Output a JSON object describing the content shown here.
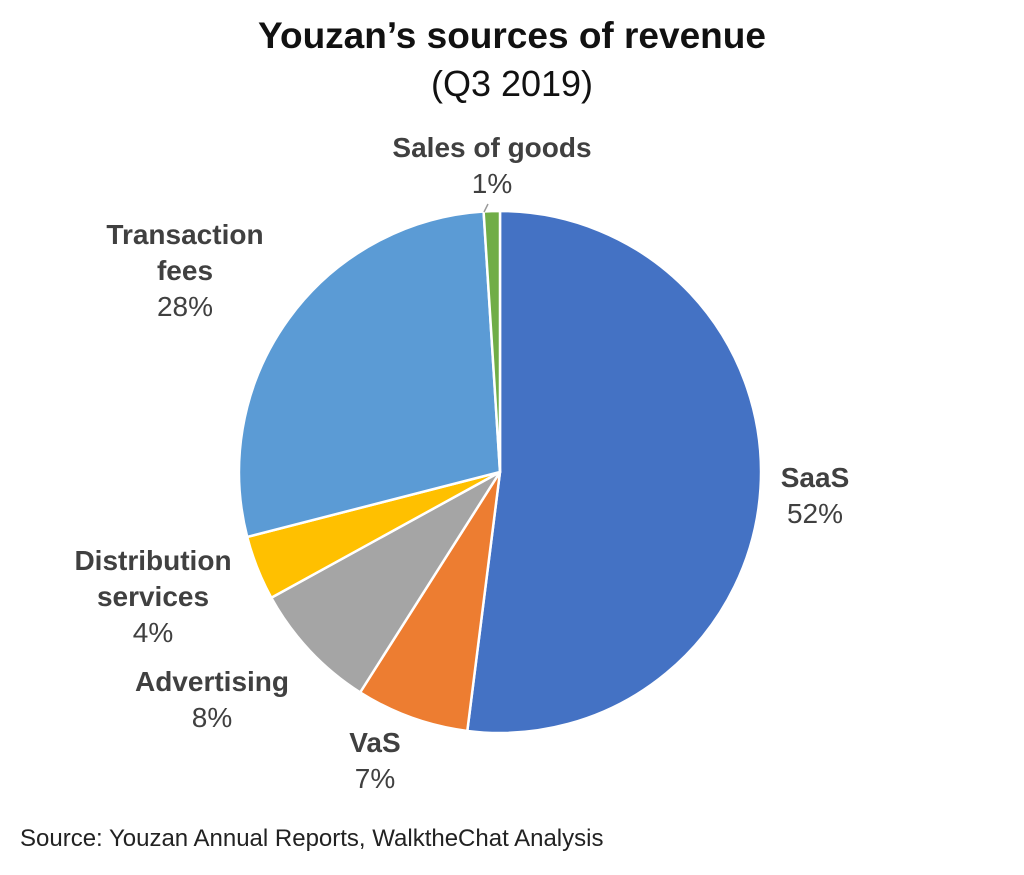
{
  "chart_data": {
    "type": "pie",
    "title": "Youzan’s sources of revenue",
    "subtitle": "(Q3 2019)",
    "slices": [
      {
        "name": "SaaS",
        "value": 52,
        "label": "52%",
        "color": "#4472C4"
      },
      {
        "name": "VaS",
        "value": 7,
        "label": "7%",
        "color": "#ED7D31"
      },
      {
        "name": "Advertising",
        "value": 8,
        "label": "8%",
        "color": "#A5A5A5"
      },
      {
        "name": "Distribution services",
        "value": 4,
        "label": "4%",
        "color": "#FFC000"
      },
      {
        "name": "Transaction fees",
        "value": 28,
        "label": "28%",
        "color": "#5B9BD5"
      },
      {
        "name": "Sales of goods",
        "value": 1,
        "label": "1%",
        "color": "#70AD47"
      }
    ],
    "source": "Source: Youzan Annual Reports, WalktheChat Analysis"
  }
}
